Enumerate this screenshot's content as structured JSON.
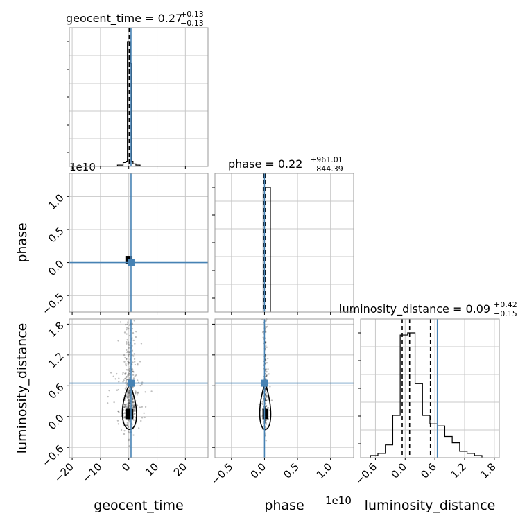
{
  "chart_data": {
    "type": "corner",
    "parameters": [
      "geocent_time",
      "phase",
      "luminosity_distance"
    ],
    "truth_color": "#4682b4",
    "hist_color": "#000000",
    "grid": true,
    "panels": {
      "geocent_time": {
        "title": {
          "main": "geocent_time = 0.27",
          "sup": "+0.13",
          "sub": "−0.13"
        },
        "xlim": [
          -21,
          28
        ],
        "xticks": [
          -20,
          -10,
          0,
          10,
          20
        ],
        "xtick_labels": [
          "−20",
          "−10",
          "0",
          "10",
          "20"
        ],
        "xlabel": "geocent_time",
        "truth": 0.8,
        "quantiles": [
          0.14,
          0.27,
          0.4
        ],
        "hist": {
          "edges": [
            -4,
            -2,
            -1,
            -0.5,
            0,
            0.5,
            1,
            1.5,
            2.5,
            4
          ],
          "counts": [
            1,
            3,
            4,
            97,
            97,
            80,
            4,
            2,
            1
          ]
        }
      },
      "phase": {
        "title": {
          "main": "phase = 0.22",
          "sup": "+961.01",
          "sub": "−844.39"
        },
        "xlim": [
          -0.75,
          1.35
        ],
        "xticks": [
          -0.5,
          0.0,
          0.5,
          1.0
        ],
        "xtick_labels": [
          "−0.5",
          "0.0",
          "0.5",
          "1.0"
        ],
        "xlabel": "phase",
        "offset": "1e10",
        "ylim": [
          -0.75,
          1.35
        ],
        "yticks": [
          -0.5,
          0.0,
          0.5,
          1.0
        ],
        "ytick_labels": [
          "−0.5",
          "0.0",
          "0.5",
          "1.0"
        ],
        "ylabel": "phase",
        "yoffset": "1e10",
        "truth": 0.0,
        "quantiles": [
          -0.01,
          0.0,
          0.01
        ],
        "hist": {
          "edges": [
            -0.02,
            0.0,
            0.09
          ],
          "counts": [
            100,
            100
          ]
        }
      },
      "luminosity_distance": {
        "title": {
          "main": "luminosity_distance = 0.09",
          "sup": "+0.42",
          "sub": "−0.15"
        },
        "xlim": [
          -0.9,
          1.9
        ],
        "xticks": [
          -0.6,
          0.0,
          0.6,
          1.2,
          1.8
        ],
        "xtick_labels": [
          "−0.6",
          "0.0",
          "0.6",
          "1.2",
          "1.8"
        ],
        "xlabel": "luminosity_distance",
        "ylim": [
          -0.8,
          1.9
        ],
        "yticks": [
          -0.6,
          0.0,
          0.6,
          1.2,
          1.8
        ],
        "ytick_labels": [
          "−0.6",
          "0.0",
          "0.6",
          "1.2",
          "1.8"
        ],
        "ylabel": "luminosity_distance",
        "truth": 0.65,
        "quantiles": [
          -0.06,
          0.09,
          0.51
        ],
        "hist": {
          "edges": [
            -0.7,
            -0.55,
            -0.4,
            -0.25,
            -0.1,
            0.05,
            0.2,
            0.35,
            0.5,
            0.65,
            0.8,
            0.95,
            1.1,
            1.25,
            1.4,
            1.55
          ],
          "counts": [
            1,
            2,
            6,
            20,
            58,
            59,
            35,
            20,
            16,
            15,
            10,
            7,
            3,
            2,
            1
          ]
        }
      }
    },
    "scatter": {
      "geocent_time_vs_phase": {
        "x": 0.5,
        "y": 0.0,
        "spread_x": 1.2,
        "spread_y": 0.01
      },
      "geocent_time_vs_luminosity_distance": {
        "x_center": 0.3,
        "y_center": 0.1,
        "spread_x": 2.5,
        "spread_y": 0.45
      },
      "phase_vs_luminosity_distance": {
        "x_center": 0.01,
        "y_center": 0.1,
        "spread_x": 0.03,
        "spread_y": 0.45
      }
    }
  }
}
